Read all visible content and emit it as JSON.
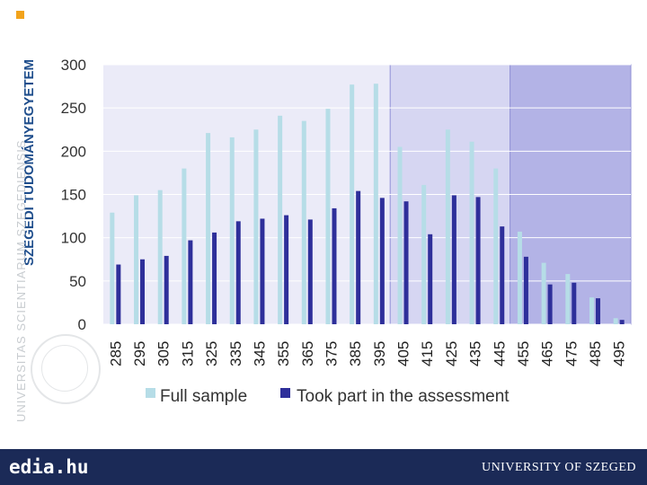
{
  "branding": {
    "university_bold": "SZEGEDI TUDOMÁNYEGYETEM",
    "university_latin": "UNIVERSITAS SCIENTIARUM SZEGEDIENSIS",
    "site": "edia.hu",
    "footer_name": "UNIVERSITY OF SZEGED"
  },
  "colors": {
    "full_sample": "#b6dde7",
    "took_part": "#2e2f9a",
    "plot_bg": "#ebebf8",
    "band_mid": "#d6d6f2",
    "band_high": "#b3b3e6",
    "accent": "#f2a31b",
    "footer_bg": "#1b2a57"
  },
  "chart_data": {
    "type": "bar",
    "categories": [
      "285",
      "295",
      "305",
      "315",
      "325",
      "335",
      "345",
      "355",
      "365",
      "375",
      "385",
      "395",
      "405",
      "415",
      "425",
      "435",
      "445",
      "455",
      "465",
      "475",
      "485",
      "495"
    ],
    "series": [
      {
        "name": "Full sample",
        "values": [
          129,
          149,
          155,
          180,
          221,
          216,
          225,
          241,
          235,
          249,
          277,
          278,
          205,
          161,
          225,
          211,
          180,
          107,
          71,
          58,
          31,
          7
        ]
      },
      {
        "name": "Took part in the assessment",
        "values": [
          69,
          75,
          79,
          97,
          106,
          119,
          122,
          126,
          121,
          134,
          154,
          146,
          142,
          104,
          149,
          147,
          113,
          78,
          46,
          48,
          30,
          5
        ]
      }
    ],
    "ylim": [
      0,
      300
    ],
    "yticks": [
      "0",
      "50",
      "100",
      "150",
      "200",
      "250",
      "300"
    ],
    "grid": true,
    "legend": "bottom",
    "shaded_bands": [
      {
        "from_category": "405",
        "to_category": "445",
        "shade": "medium"
      },
      {
        "from_category": "455",
        "to_category": "495",
        "shade": "dark"
      }
    ]
  }
}
